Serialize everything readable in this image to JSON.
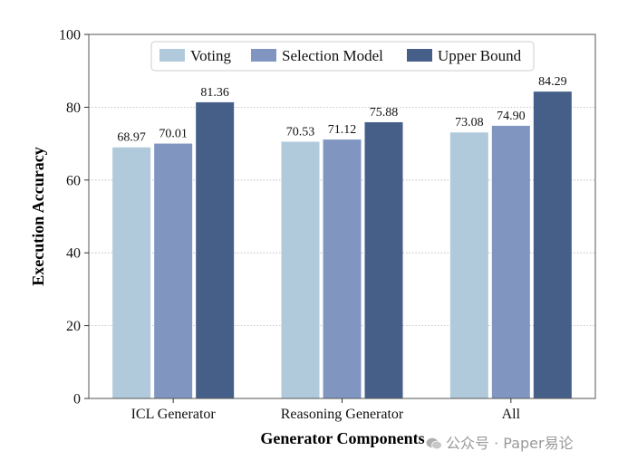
{
  "chart_data": {
    "type": "bar",
    "categories": [
      "ICL Generator",
      "Reasoning Generator",
      "All"
    ],
    "series": [
      {
        "name": "Voting",
        "values": [
          68.97,
          70.53,
          73.08
        ],
        "color": "#b1cadb"
      },
      {
        "name": "Selection Model",
        "values": [
          70.01,
          71.12,
          74.9
        ],
        "color": "#8096c0"
      },
      {
        "name": "Upper Bound",
        "values": [
          81.36,
          75.88,
          84.29
        ],
        "color": "#465f88"
      }
    ],
    "data_labels": [
      [
        "68.97",
        "70.53",
        "73.08"
      ],
      [
        "70.01",
        "71.12",
        "74.90"
      ],
      [
        "81.36",
        "75.88",
        "84.29"
      ]
    ],
    "xlabel": "Generator Components",
    "ylabel": "Execution Accuracy",
    "ylim": [
      0,
      100
    ],
    "yticks": [
      0,
      20,
      40,
      60,
      80,
      100
    ],
    "grid": "y-dotted",
    "legend_position": "top-center"
  },
  "watermark": {
    "icon": "wechat-icon",
    "text": "公众号 · Paper易论"
  }
}
